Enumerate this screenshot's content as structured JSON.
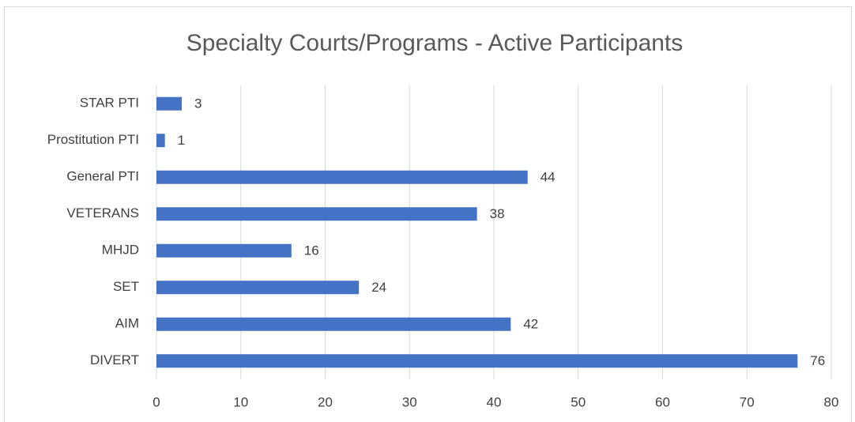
{
  "chart_data": {
    "type": "hbar",
    "title": "Specialty Courts/Programs - Active Participants",
    "categories": [
      "STAR PTI",
      "Prostitution PTI",
      "General PTI",
      "VETERANS",
      "MHJD",
      "SET",
      "AIM",
      "DIVERT"
    ],
    "values": [
      3,
      1,
      44,
      38,
      16,
      24,
      42,
      76
    ],
    "color": "#4472c4",
    "xlim": [
      0,
      80
    ],
    "xticks": [
      0,
      10,
      20,
      30,
      40,
      50,
      60,
      70,
      80
    ],
    "grid": true
  }
}
